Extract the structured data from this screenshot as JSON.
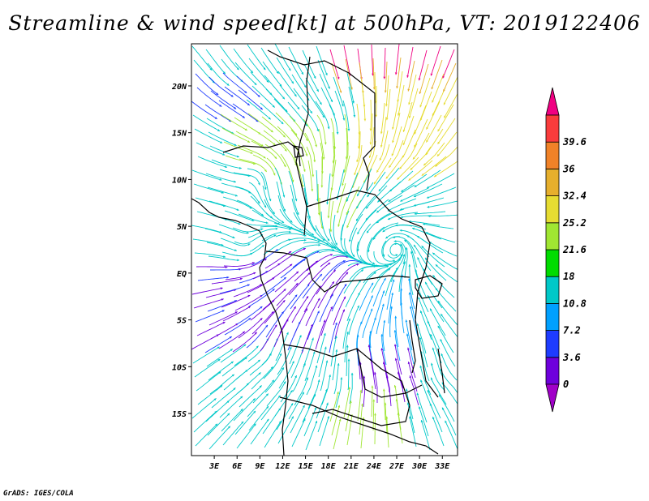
{
  "title": "Streamline & wind speed[kt] at 500hPa, VT: 2019122406",
  "credit": "GrADS: IGES/COLA",
  "map": {
    "lon_range": [
      0,
      35
    ],
    "lat_range": [
      -19.5,
      24.5
    ],
    "lon_ticks": [
      {
        "value": 3,
        "label": "3E"
      },
      {
        "value": 6,
        "label": "6E"
      },
      {
        "value": 9,
        "label": "9E"
      },
      {
        "value": 12,
        "label": "12E"
      },
      {
        "value": 15,
        "label": "15E"
      },
      {
        "value": 18,
        "label": "18E"
      },
      {
        "value": 21,
        "label": "21E"
      },
      {
        "value": 24,
        "label": "24E"
      },
      {
        "value": 27,
        "label": "27E"
      },
      {
        "value": 30,
        "label": "30E"
      },
      {
        "value": 33,
        "label": "33E"
      }
    ],
    "lat_ticks": [
      {
        "value": 20,
        "label": "20N"
      },
      {
        "value": 15,
        "label": "15N"
      },
      {
        "value": 10,
        "label": "10N"
      },
      {
        "value": 5,
        "label": "5N"
      },
      {
        "value": 0,
        "label": "EQ"
      },
      {
        "value": -5,
        "label": "5S"
      },
      {
        "value": -10,
        "label": "10S"
      },
      {
        "value": -15,
        "label": "15S"
      }
    ]
  },
  "colorbar": {
    "labels": [
      "0",
      "3.6",
      "7.2",
      "10.8",
      "18",
      "21.6",
      "25.2",
      "32.4",
      "36",
      "39.6"
    ],
    "colors": [
      "#a000c8",
      "#6e00dc",
      "#1e3cff",
      "#00a0ff",
      "#00c8c8",
      "#00dc00",
      "#a0e632",
      "#e6dc32",
      "#e6af2d",
      "#f08228",
      "#fa3c3c",
      "#f00082"
    ]
  }
}
